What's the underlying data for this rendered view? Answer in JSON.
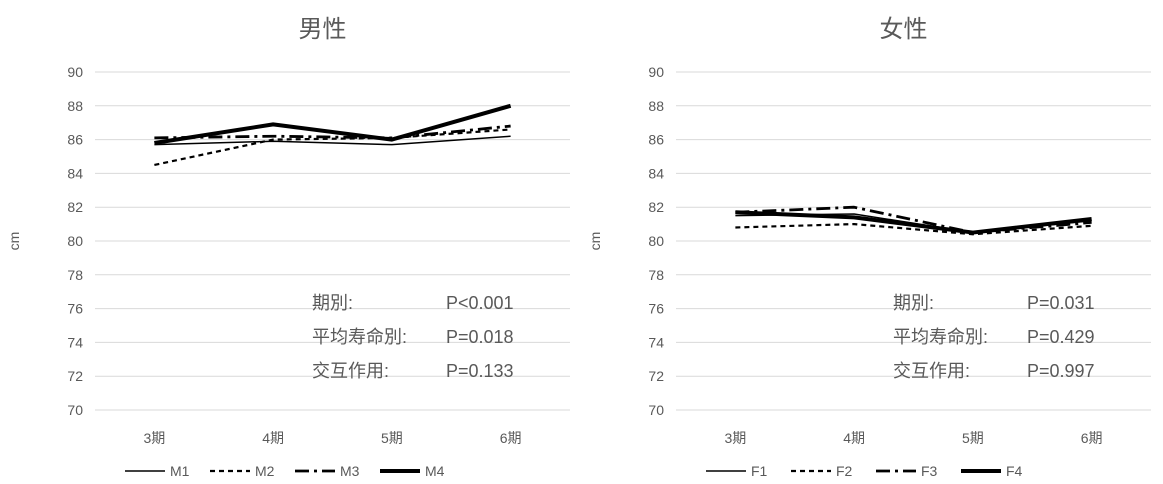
{
  "chart_data": [
    {
      "type": "line",
      "title": "男性",
      "xlabel": "",
      "ylabel": "cm",
      "categories": [
        "3期",
        "4期",
        "5期",
        "6期"
      ],
      "ylim": [
        70,
        90
      ],
      "yticks": [
        70,
        72,
        74,
        76,
        78,
        80,
        82,
        84,
        86,
        88,
        90
      ],
      "grid": true,
      "legend_position": "bottom",
      "series": [
        {
          "name": "M1",
          "style": "solid-thin",
          "values": [
            85.7,
            85.9,
            85.7,
            86.2
          ]
        },
        {
          "name": "M2",
          "style": "dashed",
          "values": [
            84.5,
            86.0,
            86.1,
            86.6
          ]
        },
        {
          "name": "M3",
          "style": "long-dash-dot",
          "values": [
            86.1,
            86.2,
            86.1,
            86.8
          ]
        },
        {
          "name": "M4",
          "style": "solid-thick",
          "values": [
            85.8,
            86.9,
            86.0,
            88.0
          ]
        }
      ],
      "stats": [
        {
          "label": "期別:",
          "value": "P<0.001"
        },
        {
          "label": "平均寿命別:",
          "value": "P=0.018"
        },
        {
          "label": "交互作用:",
          "value": "P=0.133"
        }
      ]
    },
    {
      "type": "line",
      "title": "女性",
      "xlabel": "",
      "ylabel": "cm",
      "categories": [
        "3期",
        "4期",
        "5期",
        "6期"
      ],
      "ylim": [
        70,
        90
      ],
      "yticks": [
        70,
        72,
        74,
        76,
        78,
        80,
        82,
        84,
        86,
        88,
        90
      ],
      "grid": true,
      "legend_position": "bottom",
      "series": [
        {
          "name": "F1",
          "style": "solid-thin",
          "values": [
            81.5,
            81.6,
            80.5,
            81.2
          ]
        },
        {
          "name": "F2",
          "style": "dashed",
          "values": [
            80.8,
            81.0,
            80.4,
            80.9
          ]
        },
        {
          "name": "F3",
          "style": "long-dash-dot",
          "values": [
            81.7,
            82.0,
            80.5,
            81.1
          ]
        },
        {
          "name": "F4",
          "style": "solid-thick",
          "values": [
            81.7,
            81.4,
            80.5,
            81.3
          ]
        }
      ],
      "stats": [
        {
          "label": "期別:",
          "value": "P=0.031"
        },
        {
          "label": "平均寿命別:",
          "value": "P=0.429"
        },
        {
          "label": "交互作用:",
          "value": "P=0.997"
        }
      ]
    }
  ],
  "colors": {
    "line": "#000000",
    "grid": "#d9d9d9",
    "text": "#595959"
  }
}
